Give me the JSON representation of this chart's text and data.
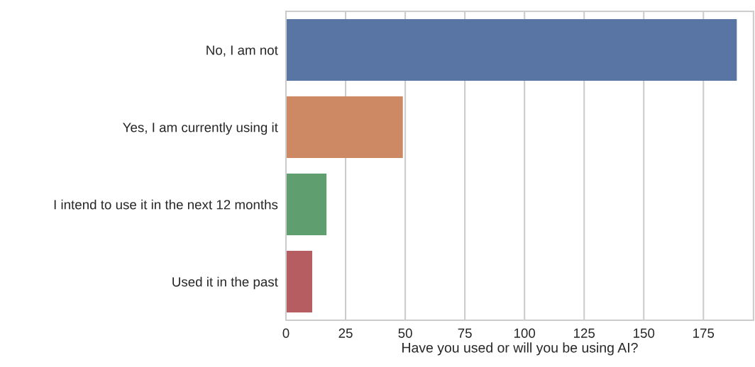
{
  "chart_data": {
    "type": "bar",
    "orientation": "horizontal",
    "xlabel": "Have you used or will you be using AI?",
    "categories": [
      "No, I am not",
      "Yes, I am currently using it",
      "I intend to use it in the next 12 months",
      "Used it in the past"
    ],
    "values": [
      189,
      49,
      17,
      11
    ],
    "colors": [
      "#5875a4",
      "#cc8963",
      "#5f9e6e",
      "#b55d60"
    ],
    "xlim": [
      0,
      196
    ],
    "xticks": [
      0,
      25,
      50,
      75,
      100,
      125,
      150,
      175
    ],
    "grid": "x"
  }
}
